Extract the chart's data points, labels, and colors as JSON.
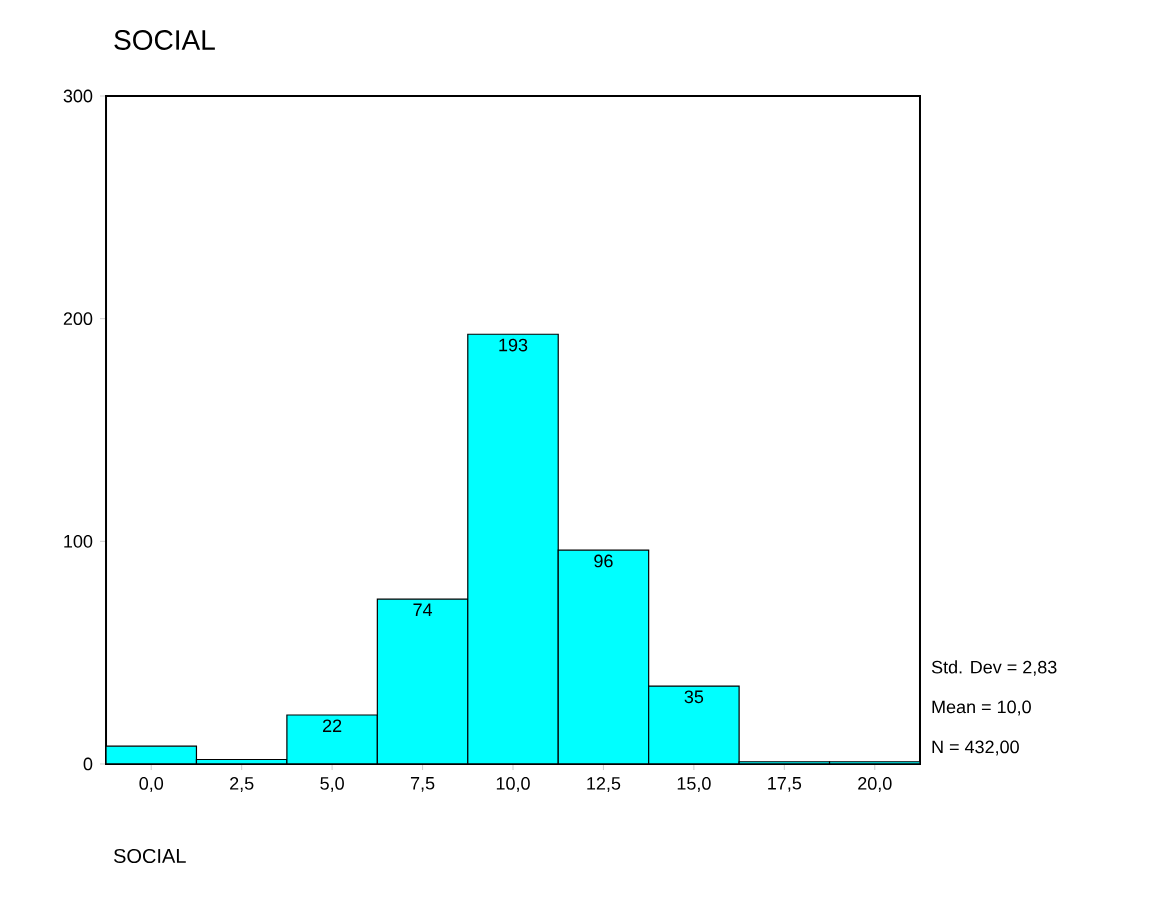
{
  "chart_data": {
    "type": "histogram",
    "title": "SOCIAL",
    "xlabel": "SOCIAL",
    "bins": [
      -1.25,
      1.25,
      3.75,
      6.25,
      8.75,
      11.25,
      13.75,
      16.25,
      18.75,
      21.25
    ],
    "values": [
      8,
      2,
      22,
      74,
      193,
      96,
      35,
      1,
      1
    ],
    "value_labels": [
      null,
      null,
      "22",
      "74",
      "193",
      "96",
      "35",
      null,
      null
    ],
    "color": "#00ffff",
    "xlim": [
      -1.25,
      21.25
    ],
    "ylim": [
      0,
      300
    ],
    "xticks": [
      {
        "value": 0,
        "label": "0,0"
      },
      {
        "value": 2.5,
        "label": "2,5"
      },
      {
        "value": 5,
        "label": "5,0"
      },
      {
        "value": 7.5,
        "label": "7,5"
      },
      {
        "value": 10,
        "label": "10,0"
      },
      {
        "value": 12.5,
        "label": "12,5"
      },
      {
        "value": 15,
        "label": "15,0"
      },
      {
        "value": 17.5,
        "label": "17,5"
      },
      {
        "value": 20,
        "label": "20,0"
      }
    ],
    "yticks": [
      0,
      100,
      200,
      300
    ],
    "annotations": [
      "Std. Dev = 2,83",
      "Mean = 10,0",
      "N = 432,00"
    ]
  }
}
